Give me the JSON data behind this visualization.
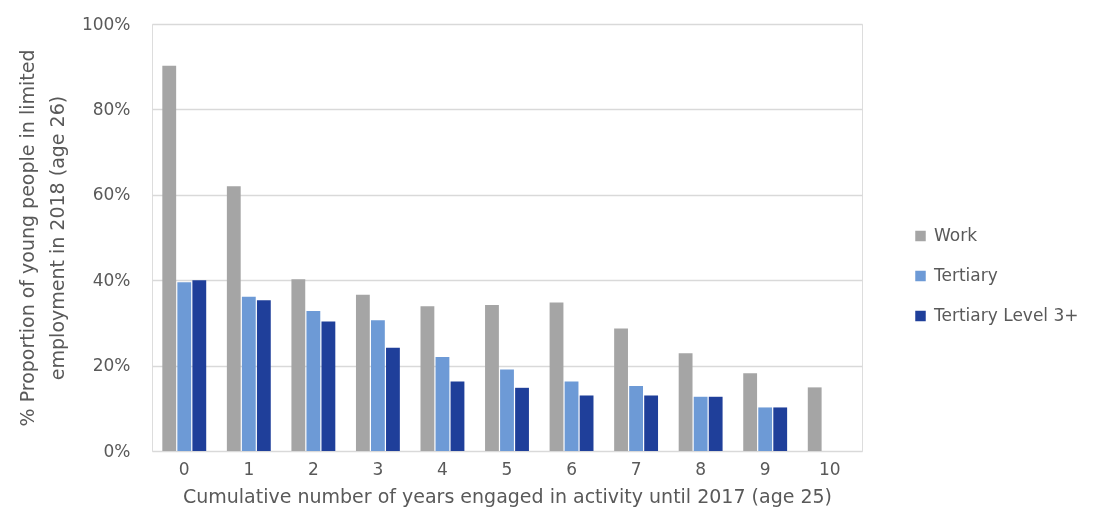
{
  "chart_data": {
    "type": "bar",
    "xlabel": "Cumulative number of years engaged in activity until 2017 (age 25)",
    "ylabel": "% Proportion of young people in limited employment in 2018 (age 26)",
    "categories": [
      "0",
      "1",
      "2",
      "3",
      "4",
      "5",
      "6",
      "7",
      "8",
      "9",
      "10"
    ],
    "series": [
      {
        "name": "Work",
        "color": "#a5a5a5",
        "values": [
          90.2,
          62.0,
          40.2,
          36.6,
          33.9,
          34.2,
          34.8,
          28.7,
          22.9,
          18.2,
          14.9
        ]
      },
      {
        "name": "Tertiary",
        "color": "#6d9ad6",
        "values": [
          39.5,
          36.1,
          32.8,
          30.6,
          22.0,
          19.1,
          16.3,
          15.2,
          12.7,
          10.2,
          null
        ]
      },
      {
        "name": "Tertiary Level 3+",
        "color": "#1f3f9a",
        "values": [
          40.0,
          35.3,
          30.3,
          24.2,
          16.3,
          14.8,
          13.0,
          13.0,
          12.7,
          10.2,
          null
        ]
      }
    ],
    "ylim": [
      0,
      100
    ],
    "yticks": [
      {
        "value": 0,
        "label": "0%"
      },
      {
        "value": 20,
        "label": "20%"
      },
      {
        "value": 40,
        "label": "40%"
      },
      {
        "value": 60,
        "label": "60%"
      },
      {
        "value": 80,
        "label": "80%"
      },
      {
        "value": 100,
        "label": "100%"
      }
    ],
    "grid": "y",
    "legend": "right"
  }
}
